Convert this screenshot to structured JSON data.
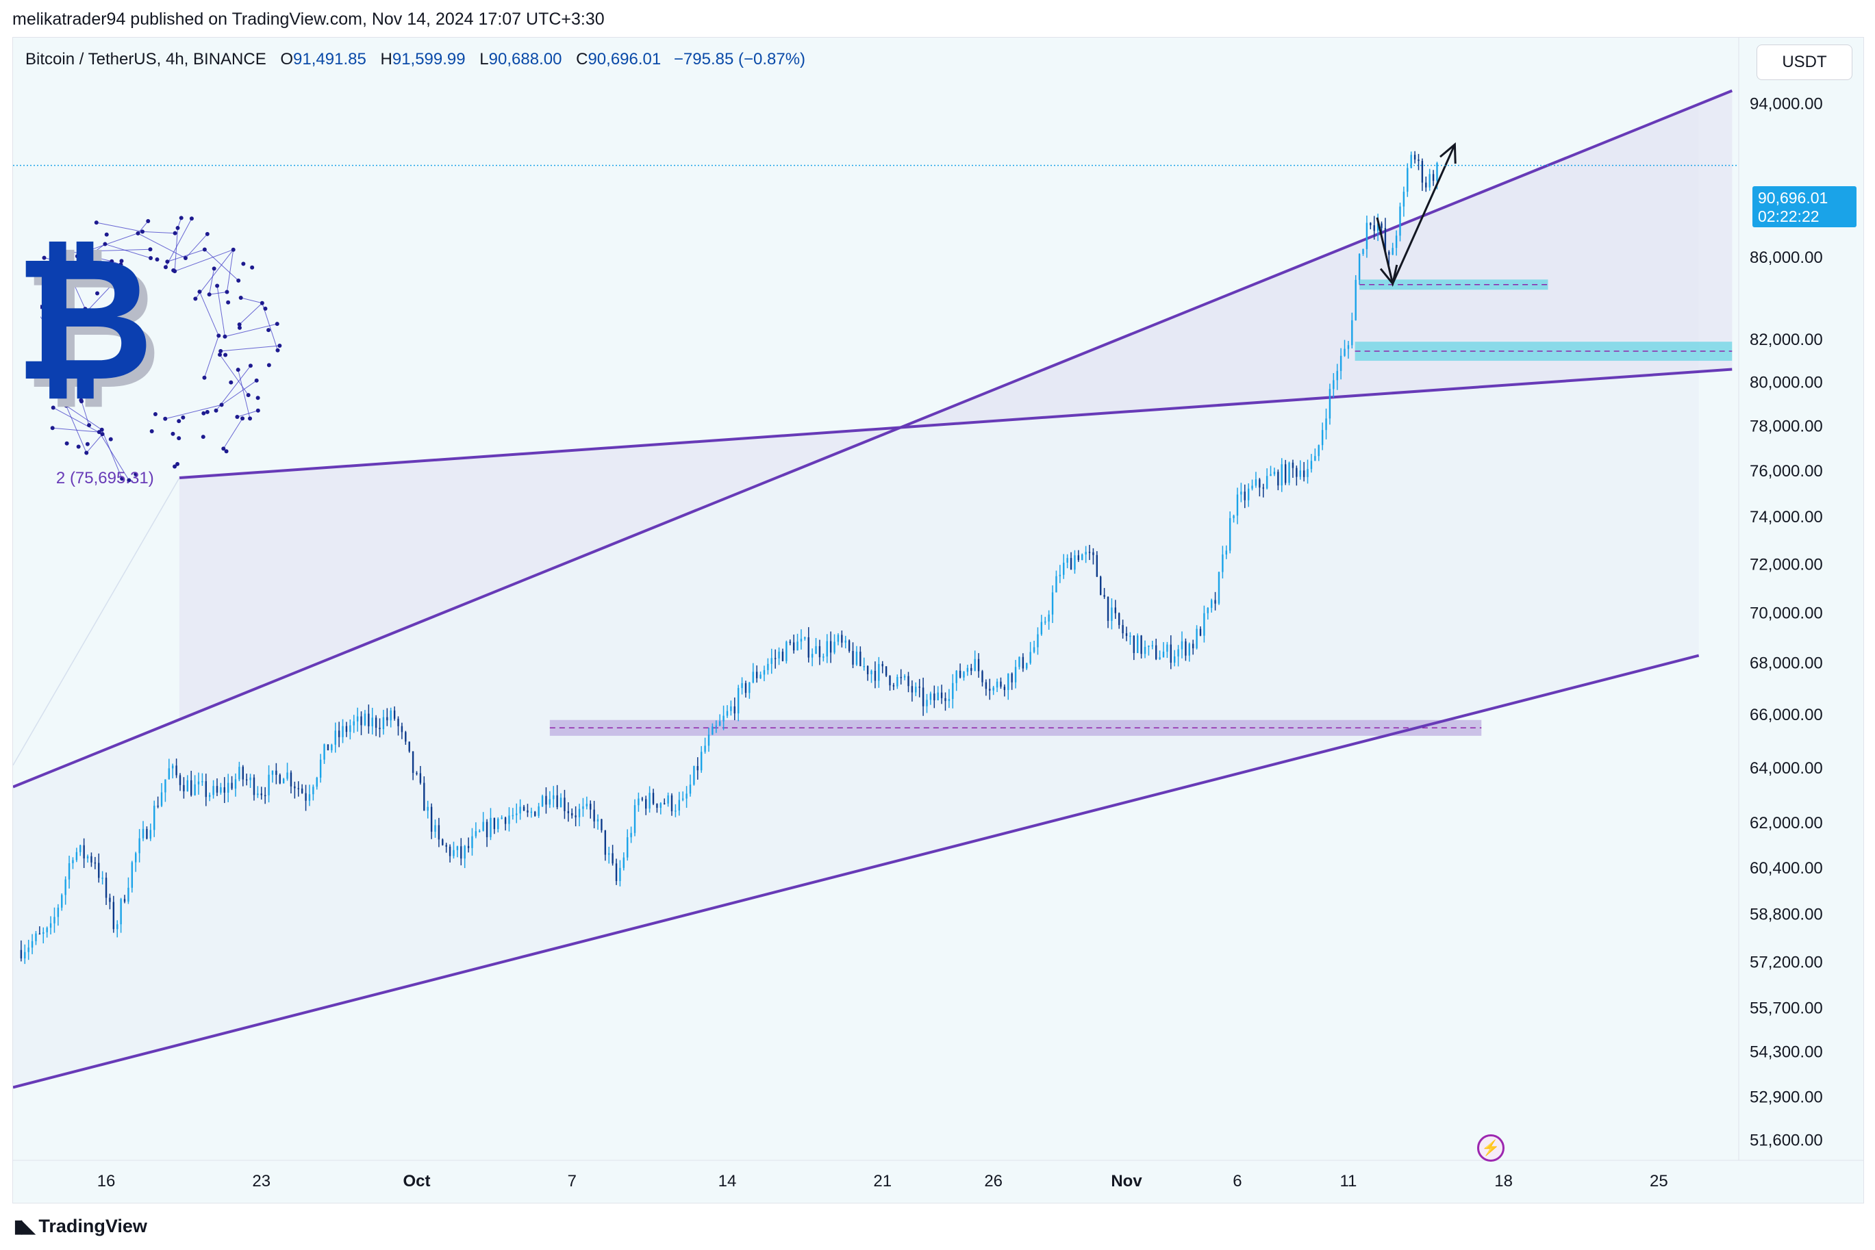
{
  "header": {
    "publisher_line": "melikatrader94 published on TradingView.com, Nov 14, 2024 17:07 UTC+3:30"
  },
  "legend": {
    "symbol": "Bitcoin / TetherUS, 4h, BINANCE",
    "open_label": "O",
    "open": "91,491.85",
    "high_label": "H",
    "high": "91,599.99",
    "low_label": "L",
    "low": "90,688.00",
    "close_label": "C",
    "close": "90,696.01",
    "change": "−795.85 (−0.87%)"
  },
  "currency_button": "USDT",
  "last_price": {
    "price": "90,696.01",
    "countdown": "02:22:22"
  },
  "footer_logo": "TradingView",
  "colors": {
    "up_candle": "#1aa3e8",
    "down_candle": "#0d3a8a",
    "channel_line": "#673ab7",
    "support_zone": "#b39ddb",
    "resistance_zone": "#4dd0e1",
    "logo_blue": "#0b3fb0"
  },
  "icons": [
    "bitcoin-logo",
    "lightning-icon",
    "tradingview-logo"
  ],
  "chart_data": {
    "type": "candlestick",
    "symbol": "BTCUSDT",
    "interval": "4h",
    "scale": "log",
    "ylim": [
      51000,
      96500
    ],
    "y_ticks": [
      "94,000.00",
      "86,000.00",
      "82,000.00",
      "80,000.00",
      "78,000.00",
      "76,000.00",
      "74,000.00",
      "72,000.00",
      "70,000.00",
      "68,000.00",
      "66,000.00",
      "64,000.00",
      "62,000.00",
      "60,400.00",
      "58,800.00",
      "57,200.00",
      "55,700.00",
      "54,300.00",
      "52,900.00",
      "51,600.00"
    ],
    "y_tick_values": [
      94000,
      86000,
      82000,
      80000,
      78000,
      76000,
      74000,
      72000,
      70000,
      68000,
      66000,
      64000,
      62000,
      60400,
      58800,
      57200,
      55700,
      54300,
      52900,
      51600
    ],
    "x_ticks": [
      {
        "label": "16",
        "day": 16
      },
      {
        "label": "23",
        "day": 23
      },
      {
        "label": "Oct",
        "day": 30
      },
      {
        "label": "7",
        "day": 37
      },
      {
        "label": "14",
        "day": 44
      },
      {
        "label": "21",
        "day": 51
      },
      {
        "label": "26",
        "day": 56
      },
      {
        "label": "Nov",
        "day": 62
      },
      {
        "label": "6",
        "day": 67
      },
      {
        "label": "11",
        "day": 72
      },
      {
        "label": "18",
        "day": 79
      },
      {
        "label": "25",
        "day": 86
      }
    ],
    "x_day_range": [
      11.8,
      89.6
    ],
    "price_path": [
      [
        12.0,
        57600
      ],
      [
        13.5,
        58200
      ],
      [
        14.5,
        61000
      ],
      [
        15.5,
        60700
      ],
      [
        16.4,
        58300
      ],
      [
        17.2,
        60600
      ],
      [
        18.2,
        62500
      ],
      [
        18.8,
        63900
      ],
      [
        19.8,
        63300
      ],
      [
        21.0,
        63000
      ],
      [
        22.0,
        63700
      ],
      [
        23.0,
        63200
      ],
      [
        24.0,
        63900
      ],
      [
        25.0,
        63000
      ],
      [
        26.0,
        64800
      ],
      [
        27.0,
        65600
      ],
      [
        28.0,
        65700
      ],
      [
        29.0,
        65900
      ],
      [
        30.0,
        63500
      ],
      [
        31.0,
        61200
      ],
      [
        32.0,
        60800
      ],
      [
        33.0,
        61700
      ],
      [
        34.0,
        62300
      ],
      [
        35.0,
        62200
      ],
      [
        36.0,
        63200
      ],
      [
        37.0,
        62400
      ],
      [
        38.0,
        62300
      ],
      [
        39.0,
        59900
      ],
      [
        40.0,
        62800
      ],
      [
        41.0,
        62800
      ],
      [
        42.0,
        62600
      ],
      [
        43.0,
        64800
      ],
      [
        44.0,
        66000
      ],
      [
        45.0,
        67300
      ],
      [
        46.0,
        68100
      ],
      [
        47.0,
        68800
      ],
      [
        48.0,
        68500
      ],
      [
        49.0,
        68800
      ],
      [
        50.0,
        67900
      ],
      [
        51.0,
        67600
      ],
      [
        52.0,
        67200
      ],
      [
        53.0,
        66400
      ],
      [
        54.0,
        67000
      ],
      [
        55.0,
        68100
      ],
      [
        56.0,
        67000
      ],
      [
        57.0,
        67700
      ],
      [
        58.0,
        68800
      ],
      [
        59.0,
        71700
      ],
      [
        59.8,
        72500
      ],
      [
        60.5,
        72100
      ],
      [
        61.2,
        70000
      ],
      [
        62.0,
        69000
      ],
      [
        63.0,
        68400
      ],
      [
        64.0,
        68400
      ],
      [
        65.0,
        68800
      ],
      [
        66.0,
        70500
      ],
      [
        66.8,
        74400
      ],
      [
        67.7,
        75200
      ],
      [
        68.5,
        75700
      ],
      [
        69.5,
        76000
      ],
      [
        70.5,
        76300
      ],
      [
        71.0,
        78800
      ],
      [
        71.5,
        80700
      ],
      [
        72.0,
        81700
      ],
      [
        72.4,
        85500
      ],
      [
        72.9,
        88000
      ],
      [
        73.4,
        87600
      ],
      [
        73.8,
        85600
      ],
      [
        74.5,
        89000
      ],
      [
        74.8,
        91500
      ],
      [
        75.5,
        89800
      ],
      [
        76.1,
        90700
      ]
    ],
    "channels": [
      {
        "name": "upper-line",
        "p1": [
          11.8,
          63300
        ],
        "p2": [
          89.3,
          94700
        ]
      },
      {
        "name": "middle-line",
        "p1": [
          19.3,
          75695.31
        ],
        "p2": [
          89.3,
          80600
        ]
      },
      {
        "name": "lower-line",
        "p1": [
          11.8,
          53200
        ],
        "p2": [
          87.8,
          68300
        ]
      },
      {
        "name": "channel-edge",
        "p1": [
          11.8,
          64100
        ],
        "p2": [
          19.3,
          75695.31
        ]
      }
    ],
    "channel_label": "2 (75,695.31)",
    "zones": [
      {
        "name": "support-zone",
        "day_from": 36.0,
        "day_to": 78.0,
        "low": 65200,
        "high": 65800,
        "mid": 65500
      },
      {
        "name": "resistance-zone-high",
        "day_from": 72.5,
        "day_to": 81.0,
        "low": 84400,
        "high": 84900,
        "mid": 84650
      },
      {
        "name": "resistance-zone-low",
        "day_from": 72.3,
        "day_to": 89.3,
        "low": 81000,
        "high": 81900,
        "mid": 81450
      }
    ],
    "arrow_path": [
      [
        73.3,
        88000
      ],
      [
        74.0,
        84700
      ],
      [
        76.8,
        91800
      ]
    ],
    "last_close": 90696.01
  }
}
